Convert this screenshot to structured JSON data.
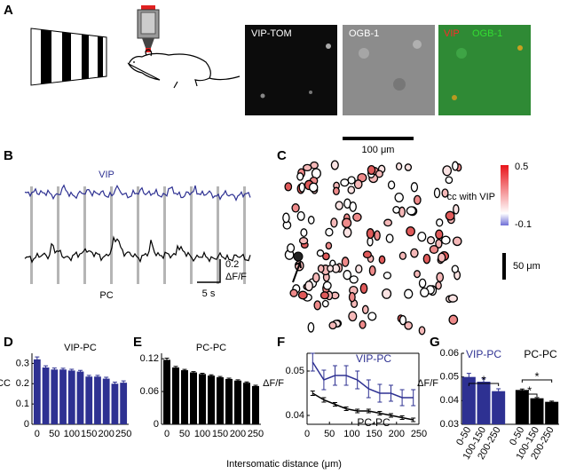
{
  "panel_labels": [
    "A",
    "B",
    "C",
    "D",
    "E",
    "F",
    "G"
  ],
  "panel_a": {
    "images": [
      "VIP-TOM",
      "OGB-1"
    ],
    "merge": [
      "VIP",
      "OGB-1"
    ],
    "scale_bar": "100 μm"
  },
  "panel_b": {
    "traces": [
      "VIP",
      "PC"
    ],
    "scale_y": "0.2",
    "scale_unit": "ΔF/F",
    "scale_x": "5 s"
  },
  "panel_c": {
    "colorbar_max": "0.5",
    "colorbar_min": "-0.1",
    "colorbar_label": "cc with VIP",
    "scale_bar": "50 μm"
  },
  "x_label": "Intersomatic distance (μm)",
  "chart_data": [
    {
      "type": "bar",
      "title": "VIP-PC",
      "y_label": "CC",
      "color": "#2e3192",
      "x": [
        0,
        25,
        50,
        75,
        100,
        125,
        150,
        175,
        200,
        225,
        250
      ],
      "values": [
        0.32,
        0.28,
        0.27,
        0.27,
        0.265,
        0.26,
        0.235,
        0.235,
        0.225,
        0.2,
        0.205
      ],
      "errors": [
        0.012,
        0.008,
        0.007,
        0.006,
        0.006,
        0.006,
        0.006,
        0.006,
        0.007,
        0.008,
        0.009
      ],
      "xlim": [
        -15,
        265
      ],
      "xticks": [
        0,
        50,
        100,
        150,
        200,
        250
      ],
      "ylim": [
        0,
        0.35
      ],
      "yticks": [
        0,
        0.1,
        0.2,
        0.3
      ]
    },
    {
      "type": "bar",
      "title": "PC-PC",
      "color": "#000000",
      "x": [
        0,
        25,
        50,
        75,
        100,
        125,
        150,
        175,
        200,
        225,
        250
      ],
      "values": [
        0.118,
        0.104,
        0.099,
        0.095,
        0.092,
        0.089,
        0.086,
        0.083,
        0.08,
        0.076,
        0.07
      ],
      "errors": [
        0.003,
        0.002,
        0.0015,
        0.0015,
        0.0015,
        0.0015,
        0.0015,
        0.0015,
        0.0015,
        0.0015,
        0.0015
      ],
      "xlim": [
        -15,
        265
      ],
      "xticks": [
        0,
        50,
        100,
        150,
        200,
        250
      ],
      "ylim": [
        0,
        0.13
      ],
      "yticks": [
        0,
        0.06,
        0.12
      ]
    },
    {
      "type": "line",
      "y_label": "ΔF/F",
      "frame": true,
      "x": [
        12.5,
        37.5,
        62.5,
        87.5,
        112.5,
        137.5,
        162.5,
        187.5,
        212.5,
        237.5
      ],
      "series": [
        {
          "name": "VIP-PC",
          "color": "#2e3192",
          "values": [
            0.052,
            0.048,
            0.049,
            0.049,
            0.048,
            0.046,
            0.045,
            0.045,
            0.044,
            0.044
          ],
          "errors": [
            0.002,
            0.0022,
            0.0022,
            0.0022,
            0.002,
            0.002,
            0.002,
            0.0018,
            0.0018,
            0.0018
          ]
        },
        {
          "name": "PC-PC",
          "color": "#000000",
          "values": [
            0.045,
            0.0435,
            0.0425,
            0.0415,
            0.041,
            0.041,
            0.0405,
            0.04,
            0.0395,
            0.039
          ],
          "errors": [
            0.0005,
            0.0005,
            0.0004,
            0.0004,
            0.0004,
            0.0004,
            0.0004,
            0.0004,
            0.0004,
            0.0004
          ]
        }
      ],
      "xlim": [
        0,
        250
      ],
      "xticks": [
        0,
        50,
        100,
        150,
        200,
        250
      ],
      "ylim": [
        0.038,
        0.054
      ],
      "yticks": [
        0.04,
        0.05
      ]
    },
    {
      "type": "bar",
      "y_label": "ΔF/F",
      "categories": [
        "0-50",
        "100-150",
        "200-250"
      ],
      "series": [
        {
          "name": "VIP-PC",
          "color": "#2e3192",
          "values": [
            0.05,
            0.048,
            0.044
          ],
          "errors": [
            0.0015,
            0.0015,
            0.001
          ]
        },
        {
          "name": "PC-PC",
          "color": "#000000",
          "values": [
            0.0445,
            0.041,
            0.0395
          ],
          "errors": [
            0.0004,
            0.0003,
            0.0003
          ]
        }
      ],
      "annotations": [
        "*",
        "*",
        "*"
      ],
      "ylim": [
        0.03,
        0.06
      ],
      "yticks": [
        0.03,
        0.04,
        0.05,
        0.06
      ]
    }
  ]
}
